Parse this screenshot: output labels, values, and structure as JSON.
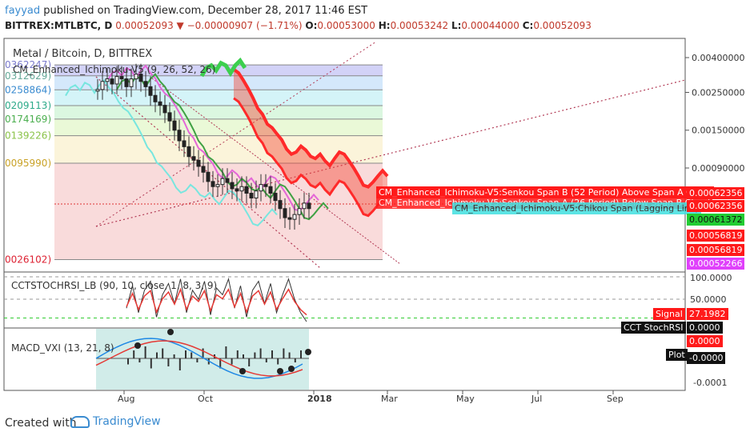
{
  "header": {
    "author": "fayyad",
    "published_text": "published on TradingView.com, December 28, 2017 11:46 EST",
    "symbol": "BITTREX:MTLBTC, D",
    "last": "0.00052093",
    "change": "−0.00000907 (−1.71%)",
    "o_label": "O:",
    "o": "0.00053000",
    "h_label": "H:",
    "h": "0.00053242",
    "l_label": "L:",
    "l": "0.00044000",
    "c_label": "C:",
    "c": "0.00052093"
  },
  "legend": {
    "main_title": "Metal / Bitcoin, D, BITTREX",
    "ichimoku": "CM_Enhanced_Ichimoku-V5 (9, 26, 52, 26)",
    "stoch": "CCTSTOCHRSI_LB (90, 10, close, 1, 8, 3, 9)",
    "macd": "MACD_VXI (13, 21, 8)"
  },
  "footer": {
    "created_with": "Created with",
    "brand": "TradingView"
  },
  "colors": {
    "up": "#26a69a",
    "down": "#ef5350",
    "cloud_red": "#f24b3a",
    "cloud_green": "#3ccf4e",
    "tenkan": "#e466d8",
    "kijun": "#3fa143",
    "lagging": "#78e6df",
    "trend": "#b23a55"
  },
  "chart_data": [
    {
      "type": "line",
      "title": "Metal / Bitcoin, D, BITTREX",
      "scale": "log",
      "x_ticks": [
        "Aug",
        "Oct",
        "2018",
        "Mar",
        "May",
        "Jul",
        "Sep"
      ],
      "y_ticks": [
        "0.00400000",
        "0.00250000",
        "0.00150000",
        "0.00090000",
        "0.00062356",
        "0.00062356"
      ],
      "fib_levels": [
        "0362247)",
        "0312629)",
        "0258864)",
        "0209113)",
        "0174169)",
        "0139226)",
        "0095990)",
        "0026102)"
      ],
      "fib_level_values": [
        0.0036247,
        0.0031263,
        0.0025886,
        0.0020911,
        0.0017417,
        0.0013923,
        0.0009599,
        0.000261
      ],
      "price_tags": [
        {
          "label": "0.00062356",
          "color": "#ff0000"
        },
        {
          "label": "0.00062356",
          "color": "#ff0000"
        },
        {
          "label": "0.00061372",
          "color": "#00c853"
        },
        {
          "label": "0.00056819",
          "color": "#ff0000"
        },
        {
          "label": "0.00056819",
          "color": "#ff0000"
        },
        {
          "label": "0.00052266",
          "color": "#e040fb"
        }
      ],
      "annotations": [
        "CM_Enhanced_Ichimoku-V5:Senkou Span B (52 Period) Above Span A Cloud",
        "CM_Enhanced_Ichimoku-V5:Senkou Span A (26 Period) Below Span B Cloud",
        "CM_Enhanced_Ichimoku-V5:Chikou Span (Lagging Line)"
      ],
      "x": [
        0,
        6,
        12,
        18,
        24,
        30,
        36,
        42,
        48,
        54,
        60,
        66,
        72,
        78,
        84,
        90,
        96,
        102,
        108,
        114,
        120,
        126,
        132,
        138,
        144,
        150,
        156,
        162,
        168,
        174,
        180,
        186,
        192,
        198,
        204,
        210,
        216,
        222,
        228,
        234,
        240,
        246,
        252,
        258,
        264
      ],
      "close": [
        0.0026,
        0.0029,
        0.003,
        0.0028,
        0.0031,
        0.003,
        0.0027,
        0.003,
        0.0032,
        0.0029,
        0.0027,
        0.0024,
        0.0022,
        0.0021,
        0.0019,
        0.0017,
        0.0015,
        0.0013,
        0.0012,
        0.00105,
        0.001,
        0.00092,
        0.00085,
        0.00075,
        0.0007,
        0.00072,
        0.00078,
        0.00074,
        0.00068,
        0.00066,
        0.0007,
        0.00064,
        0.0006,
        0.00066,
        0.00072,
        0.0007,
        0.00064,
        0.00058,
        0.00052,
        0.00046,
        0.00045,
        0.00048,
        0.00052,
        0.00056,
        0.00052
      ]
    },
    {
      "type": "line",
      "title": "CCTSTOCHRSI_LB (90, 10, close, 1, 8, 3, 9)",
      "y_ticks": [
        "100.0000",
        "50.0000"
      ],
      "series": [
        {
          "name": "CCT StochRSI",
          "last": "0.0000"
        },
        {
          "name": "Signal",
          "last": "27.1982"
        }
      ],
      "values": [
        30,
        80,
        20,
        70,
        90,
        10,
        60,
        85,
        40,
        95,
        20,
        70,
        50,
        90,
        15,
        75,
        60,
        95,
        30,
        80,
        10,
        70,
        90,
        40,
        85,
        20,
        60,
        95,
        50,
        20,
        0
      ]
    },
    {
      "type": "bar",
      "title": "MACD_VXI (13, 21, 8)",
      "y_ticks": [
        "-0.0001"
      ],
      "series": [
        {
          "name": "MACD",
          "last": "0.0000"
        },
        {
          "name": "Plot",
          "last": "-0.0000"
        }
      ],
      "values": [
        -0.3,
        0.4,
        -0.2,
        0.6,
        -0.5,
        0.3,
        0.5,
        -0.4,
        0.2,
        -0.6,
        0.4,
        0.3,
        -0.2,
        0.5,
        -0.3,
        0.2,
        -0.5,
        0.6,
        -0.3,
        0.4,
        0.2,
        -0.4,
        0.3,
        0.5,
        -0.2,
        0.4,
        -0.3,
        0.5,
        0.3,
        -0.2,
        0.4
      ]
    }
  ]
}
